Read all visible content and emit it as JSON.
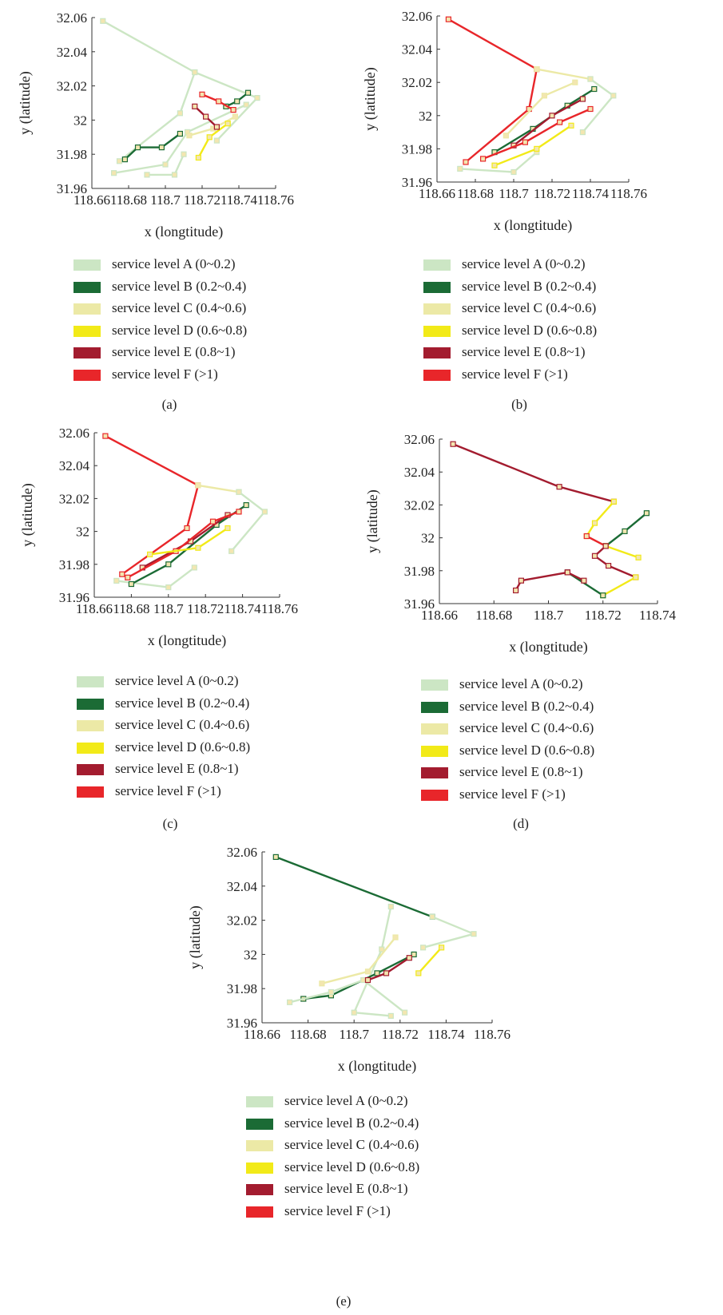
{
  "figure": {
    "legend_items": [
      {
        "label": "service level A (0~0.2)",
        "color": "#cce6c4"
      },
      {
        "label": "service level B (0.2~0.4)",
        "color": "#1b6b35"
      },
      {
        "label": "service level C (0.4~0.6)",
        "color": "#ece9a6"
      },
      {
        "label": "service level D (0.6~0.8)",
        "color": "#f2ea18"
      },
      {
        "label": "service level E (0.8~1)",
        "color": "#a31c2f"
      },
      {
        "label": "service level F (>1)",
        "color": "#e8262a"
      }
    ],
    "captions": [
      "(a)",
      "(b)",
      "(c)",
      "(d)",
      "(e)"
    ]
  },
  "chart_data": [
    {
      "type": "line",
      "panel": "(a)",
      "xlabel": "x (longtitude)",
      "ylabel": "y (latitude)",
      "xlim": [
        118.66,
        118.76
      ],
      "ylim": [
        31.96,
        32.06
      ],
      "xticks": [
        "118.66",
        "118.68",
        "118.7",
        "118.72",
        "118.74",
        "118.76"
      ],
      "yticks": [
        "31.96",
        "31.98",
        "32",
        "32.02",
        "32.04",
        "32.06"
      ],
      "series": [
        {
          "level": "A",
          "color": "#cce6c4",
          "points": [
            [
              118.666,
              32.058
            ],
            [
              118.716,
              32.028
            ],
            [
              118.708,
              32.004
            ],
            [
              118.675,
              31.976
            ]
          ]
        },
        {
          "level": "A",
          "color": "#cce6c4",
          "points": [
            [
              118.716,
              32.028
            ],
            [
              118.75,
              32.013
            ],
            [
              118.728,
              31.988
            ]
          ]
        },
        {
          "level": "A",
          "color": "#cce6c4",
          "points": [
            [
              118.672,
              31.969
            ],
            [
              118.7,
              31.974
            ],
            [
              118.712,
              31.993
            ],
            [
              118.744,
              32.009
            ]
          ]
        },
        {
          "level": "A",
          "color": "#cce6c4",
          "points": [
            [
              118.69,
              31.968
            ],
            [
              118.705,
              31.968
            ],
            [
              118.71,
              31.98
            ]
          ]
        },
        {
          "level": "B",
          "color": "#1b6b35",
          "points": [
            [
              118.678,
              31.977
            ],
            [
              118.685,
              31.984
            ],
            [
              118.698,
              31.984
            ],
            [
              118.708,
              31.992
            ]
          ]
        },
        {
          "level": "B",
          "color": "#1b6b35",
          "points": [
            [
              118.733,
              32.008
            ],
            [
              118.739,
              32.011
            ],
            [
              118.745,
              32.016
            ]
          ]
        },
        {
          "level": "C",
          "color": "#ece9a6",
          "points": [
            [
              118.713,
              31.991
            ],
            [
              118.726,
              31.995
            ],
            [
              118.738,
              32.002
            ]
          ]
        },
        {
          "level": "D",
          "color": "#f2ea18",
          "points": [
            [
              118.718,
              31.978
            ],
            [
              118.724,
              31.99
            ],
            [
              118.734,
              31.998
            ]
          ]
        },
        {
          "level": "E",
          "color": "#a31c2f",
          "points": [
            [
              118.716,
              32.008
            ],
            [
              118.722,
              32.002
            ],
            [
              118.728,
              31.996
            ]
          ]
        },
        {
          "level": "F",
          "color": "#e8262a",
          "points": [
            [
              118.72,
              32.015
            ],
            [
              118.729,
              32.011
            ],
            [
              118.737,
              32.006
            ]
          ]
        }
      ]
    },
    {
      "type": "line",
      "panel": "(b)",
      "xlabel": "x (longtitude)",
      "ylabel": "y (latitude)",
      "xlim": [
        118.66,
        118.76
      ],
      "ylim": [
        31.96,
        32.06
      ],
      "xticks": [
        "118.66",
        "118.68",
        "118.7",
        "118.72",
        "118.74",
        "118.76"
      ],
      "yticks": [
        "31.96",
        "31.98",
        "32",
        "32.02",
        "32.04",
        "32.06"
      ],
      "series": [
        {
          "level": "F",
          "color": "#e8262a",
          "points": [
            [
              118.666,
              32.058
            ],
            [
              118.712,
              32.028
            ],
            [
              118.708,
              32.004
            ],
            [
              118.675,
              31.972
            ]
          ]
        },
        {
          "level": "C",
          "color": "#ece9a6",
          "points": [
            [
              118.712,
              32.028
            ],
            [
              118.74,
              32.022
            ]
          ]
        },
        {
          "level": "A",
          "color": "#cce6c4",
          "points": [
            [
              118.74,
              32.022
            ],
            [
              118.752,
              32.012
            ],
            [
              118.736,
              31.99
            ]
          ]
        },
        {
          "level": "A",
          "color": "#cce6c4",
          "points": [
            [
              118.672,
              31.968
            ],
            [
              118.7,
              31.966
            ],
            [
              118.712,
              31.978
            ]
          ]
        },
        {
          "level": "B",
          "color": "#1b6b35",
          "points": [
            [
              118.69,
              31.978
            ],
            [
              118.71,
              31.992
            ],
            [
              118.728,
              32.006
            ],
            [
              118.742,
              32.016
            ]
          ]
        },
        {
          "level": "E",
          "color": "#a31c2f",
          "points": [
            [
              118.7,
              31.982
            ],
            [
              118.72,
              32.0
            ],
            [
              118.736,
              32.01
            ]
          ]
        },
        {
          "level": "F",
          "color": "#e8262a",
          "points": [
            [
              118.684,
              31.974
            ],
            [
              118.706,
              31.984
            ],
            [
              118.724,
              31.996
            ],
            [
              118.74,
              32.004
            ]
          ]
        },
        {
          "level": "D",
          "color": "#f2ea18",
          "points": [
            [
              118.69,
              31.97
            ],
            [
              118.712,
              31.98
            ],
            [
              118.73,
              31.994
            ]
          ]
        },
        {
          "level": "C",
          "color": "#ece9a6",
          "points": [
            [
              118.696,
              31.988
            ],
            [
              118.716,
              32.012
            ],
            [
              118.732,
              32.02
            ]
          ]
        }
      ]
    },
    {
      "type": "line",
      "panel": "(c)",
      "xlabel": "x (longtitude)",
      "ylabel": "y (latitude)",
      "xlim": [
        118.66,
        118.76
      ],
      "ylim": [
        31.96,
        32.06
      ],
      "xticks": [
        "118.66",
        "118.68",
        "118.7",
        "118.72",
        "118.74",
        "118.76"
      ],
      "yticks": [
        "31.96",
        "31.98",
        "32",
        "32.02",
        "32.04",
        "32.06"
      ],
      "series": [
        {
          "level": "F",
          "color": "#e8262a",
          "points": [
            [
              118.666,
              32.058
            ],
            [
              118.716,
              32.028
            ],
            [
              118.71,
              32.002
            ],
            [
              118.675,
              31.974
            ]
          ]
        },
        {
          "level": "C",
          "color": "#ece9a6",
          "points": [
            [
              118.716,
              32.028
            ],
            [
              118.738,
              32.024
            ]
          ]
        },
        {
          "level": "A",
          "color": "#cce6c4",
          "points": [
            [
              118.738,
              32.024
            ],
            [
              118.752,
              32.012
            ],
            [
              118.734,
              31.988
            ]
          ]
        },
        {
          "level": "A",
          "color": "#cce6c4",
          "points": [
            [
              118.672,
              31.97
            ],
            [
              118.7,
              31.966
            ],
            [
              118.714,
              31.978
            ]
          ]
        },
        {
          "level": "B",
          "color": "#1b6b35",
          "points": [
            [
              118.68,
              31.968
            ],
            [
              118.7,
              31.98
            ],
            [
              118.726,
              32.004
            ],
            [
              118.742,
              32.016
            ]
          ]
        },
        {
          "level": "E",
          "color": "#a31c2f",
          "points": [
            [
              118.686,
              31.978
            ],
            [
              118.712,
              31.994
            ],
            [
              118.732,
              32.01
            ]
          ]
        },
        {
          "level": "F",
          "color": "#e8262a",
          "points": [
            [
              118.678,
              31.972
            ],
            [
              118.704,
              31.988
            ],
            [
              118.724,
              32.006
            ],
            [
              118.738,
              32.012
            ]
          ]
        },
        {
          "level": "D",
          "color": "#f2ea18",
          "points": [
            [
              118.69,
              31.986
            ],
            [
              118.716,
              31.99
            ],
            [
              118.732,
              32.002
            ]
          ]
        }
      ]
    },
    {
      "type": "line",
      "panel": "(d)",
      "xlabel": "x (longtitude)",
      "ylabel": "y (latitude)",
      "xlim": [
        118.66,
        118.74
      ],
      "ylim": [
        31.96,
        32.06
      ],
      "xticks": [
        "118.66",
        "118.68",
        "118.7",
        "118.72",
        "118.74"
      ],
      "yticks": [
        "31.96",
        "31.98",
        "32",
        "32.02",
        "32.04",
        "32.06"
      ],
      "series": [
        {
          "level": "E",
          "color": "#a31c2f",
          "points": [
            [
              118.665,
              32.057
            ],
            [
              118.704,
              32.031
            ],
            [
              118.724,
              32.022
            ]
          ]
        },
        {
          "level": "D",
          "color": "#f2ea18",
          "points": [
            [
              118.724,
              32.022
            ],
            [
              118.717,
              32.009
            ],
            [
              118.714,
              32.001
            ]
          ]
        },
        {
          "level": "F",
          "color": "#e8262a",
          "points": [
            [
              118.714,
              32.001
            ],
            [
              118.721,
              31.995
            ]
          ]
        },
        {
          "level": "B",
          "color": "#1b6b35",
          "points": [
            [
              118.736,
              32.015
            ],
            [
              118.728,
              32.004
            ],
            [
              118.721,
              31.995
            ]
          ]
        },
        {
          "level": "D",
          "color": "#f2ea18",
          "points": [
            [
              118.721,
              31.995
            ],
            [
              118.733,
              31.988
            ]
          ]
        },
        {
          "level": "E",
          "color": "#a31c2f",
          "points": [
            [
              118.721,
              31.995
            ],
            [
              118.717,
              31.989
            ],
            [
              118.722,
              31.983
            ],
            [
              118.732,
              31.976
            ]
          ]
        },
        {
          "level": "D",
          "color": "#f2ea18",
          "points": [
            [
              118.732,
              31.976
            ],
            [
              118.72,
              31.965
            ]
          ]
        },
        {
          "level": "B",
          "color": "#1b6b35",
          "points": [
            [
              118.72,
              31.965
            ],
            [
              118.707,
              31.979
            ]
          ]
        },
        {
          "level": "E",
          "color": "#a31c2f",
          "points": [
            [
              118.707,
              31.979
            ],
            [
              118.69,
              31.974
            ],
            [
              118.688,
              31.968
            ]
          ]
        },
        {
          "level": "E",
          "color": "#a31c2f",
          "points": [
            [
              118.707,
              31.979
            ],
            [
              118.713,
              31.974
            ]
          ]
        }
      ]
    },
    {
      "type": "line",
      "panel": "(e)",
      "xlabel": "x (longtitude)",
      "ylabel": "y (latitude)",
      "xlim": [
        118.66,
        118.76
      ],
      "ylim": [
        31.96,
        32.06
      ],
      "xticks": [
        "118.66",
        "118.68",
        "118.7",
        "118.72",
        "118.74",
        "118.76"
      ],
      "yticks": [
        "31.96",
        "31.98",
        "32",
        "32.02",
        "32.04",
        "32.06"
      ],
      "series": [
        {
          "level": "B",
          "color": "#1b6b35",
          "points": [
            [
              118.666,
              32.057
            ],
            [
              118.734,
              32.022
            ]
          ]
        },
        {
          "level": "A",
          "color": "#cce6c4",
          "points": [
            [
              118.734,
              32.022
            ],
            [
              118.752,
              32.012
            ],
            [
              118.73,
              32.004
            ]
          ]
        },
        {
          "level": "A",
          "color": "#cce6c4",
          "points": [
            [
              118.716,
              32.028
            ],
            [
              118.712,
              32.003
            ],
            [
              118.7,
              31.966
            ],
            [
              118.716,
              31.964
            ]
          ]
        },
        {
          "level": "B",
          "color": "#1b6b35",
          "points": [
            [
              118.678,
              31.974
            ],
            [
              118.69,
              31.976
            ],
            [
              118.71,
              31.989
            ],
            [
              118.726,
              32.0
            ]
          ]
        },
        {
          "level": "C",
          "color": "#ece9a6",
          "points": [
            [
              118.686,
              31.983
            ],
            [
              118.706,
              31.99
            ],
            [
              118.718,
              32.01
            ]
          ]
        },
        {
          "level": "D",
          "color": "#f2ea18",
          "points": [
            [
              118.728,
              31.989
            ],
            [
              118.738,
              32.004
            ]
          ]
        },
        {
          "level": "A",
          "color": "#cce6c4",
          "points": [
            [
              118.672,
              31.972
            ],
            [
              118.69,
              31.978
            ],
            [
              118.704,
              31.985
            ],
            [
              118.722,
              31.966
            ]
          ]
        },
        {
          "level": "E",
          "color": "#a31c2f",
          "points": [
            [
              118.706,
              31.985
            ],
            [
              118.714,
              31.989
            ],
            [
              118.724,
              31.998
            ]
          ]
        }
      ]
    }
  ]
}
